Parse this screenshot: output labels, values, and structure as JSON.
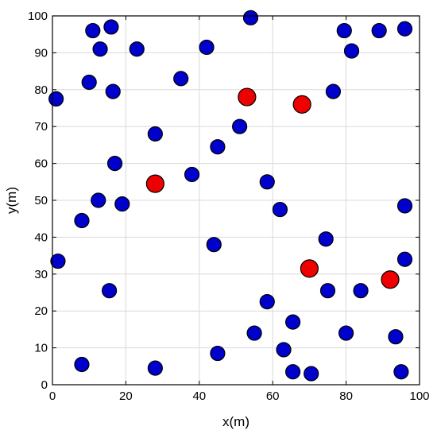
{
  "chart_data": {
    "type": "scatter",
    "title": "",
    "xlabel": "x(m)",
    "ylabel": "y(m)",
    "xlim": [
      0,
      100
    ],
    "ylim": [
      0,
      100
    ],
    "xticks": [
      0,
      20,
      40,
      60,
      80,
      100
    ],
    "yticks": [
      0,
      10,
      20,
      30,
      40,
      50,
      60,
      70,
      80,
      90,
      100
    ],
    "grid": true,
    "series": [
      {
        "color": "#0000cc",
        "points": [
          [
            54,
            99.5
          ],
          [
            11,
            96
          ],
          [
            16,
            97
          ],
          [
            13,
            91
          ],
          [
            23,
            91
          ],
          [
            42,
            91.5
          ],
          [
            79.5,
            96
          ],
          [
            89,
            96
          ],
          [
            96,
            96.5
          ],
          [
            81.5,
            90.5
          ],
          [
            10,
            82
          ],
          [
            16.5,
            79.5
          ],
          [
            35,
            83
          ],
          [
            76.5,
            79.5
          ],
          [
            1,
            77.5
          ],
          [
            28,
            68
          ],
          [
            51,
            70
          ],
          [
            45,
            64.5
          ],
          [
            17,
            60
          ],
          [
            38,
            57
          ],
          [
            58.5,
            55
          ],
          [
            12.5,
            50
          ],
          [
            19,
            49
          ],
          [
            62,
            47.5
          ],
          [
            96,
            48.5
          ],
          [
            8,
            44.5
          ],
          [
            44,
            38
          ],
          [
            74.5,
            39.5
          ],
          [
            1.5,
            33.5
          ],
          [
            96,
            34
          ],
          [
            15.5,
            25.5
          ],
          [
            75,
            25.5
          ],
          [
            84,
            25.5
          ],
          [
            58.5,
            22.5
          ],
          [
            65.5,
            17
          ],
          [
            55,
            14
          ],
          [
            80,
            14
          ],
          [
            45,
            8.5
          ],
          [
            63,
            9.5
          ],
          [
            93.5,
            13
          ],
          [
            8,
            5.5
          ],
          [
            28,
            4.5
          ],
          [
            65.5,
            3.5
          ],
          [
            70.5,
            3
          ],
          [
            95,
            3.5
          ]
        ]
      },
      {
        "color": "#ee0000",
        "points": [
          [
            53,
            78
          ],
          [
            68,
            76
          ],
          [
            28,
            54.5
          ],
          [
            70,
            31.5
          ],
          [
            92,
            28.5
          ]
        ]
      }
    ]
  }
}
